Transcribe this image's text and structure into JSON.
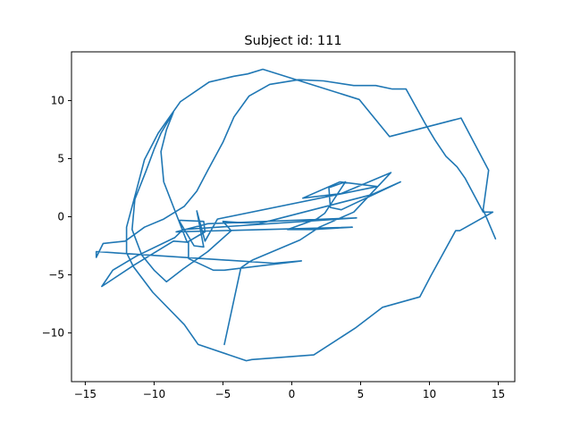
{
  "chart_data": {
    "type": "line",
    "title": "Subject id: 111",
    "xlabel": "",
    "ylabel": "",
    "xlim": [
      -16.0,
      16.2
    ],
    "ylim": [
      -14.2,
      14.2
    ],
    "xticks": [
      -15,
      -10,
      -5,
      0,
      5,
      10,
      15
    ],
    "yticks": [
      -10,
      -5,
      0,
      5,
      10
    ],
    "xtick_labels": [
      "−15",
      "−10",
      "−5",
      "0",
      "5",
      "10",
      "15"
    ],
    "ytick_labels": [
      "−10",
      "−5",
      "0",
      "5",
      "10"
    ],
    "grid": false,
    "series": [
      {
        "color": "#1f77b4",
        "x": [
          -4.9,
          -3.7,
          -3.1,
          -2.8,
          0.6,
          2.0,
          4.5,
          7.2,
          3.6,
          0.8,
          3.5,
          6.2,
          -5.4,
          -6.3,
          -6.9,
          -6.4,
          -7.1,
          -8.2,
          -6.4,
          -6.3,
          -6.6,
          -7.6,
          -9.3,
          -9.5,
          -9.1,
          -8.6,
          -9.5,
          -10.0,
          -10.6,
          -11.4,
          -11.6,
          -10.9,
          -10.0,
          -9.1,
          -7.9,
          -6.1,
          -4.4,
          -5.0,
          -2.4,
          5.8,
          7.9,
          3.6,
          2.8,
          2.7,
          3.9,
          2.4,
          1.8,
          -0.3,
          1.5,
          4.4,
          -8.4,
          -6.1,
          4.7,
          -7.9,
          -8.5,
          -11.3,
          -13.0,
          -13.8,
          -11.5,
          -8.6,
          -7.5,
          -7.5,
          -5.7,
          -4.9,
          0.7,
          -1.3,
          -14.2,
          -14.2,
          -13.7,
          -12.1,
          -10.7,
          -9.3,
          -7.8,
          -6.9,
          -6.1,
          -5.0,
          -4.2,
          -3.1,
          -1.6,
          0.5,
          2.3,
          4.5,
          6.1,
          7.3,
          8.3,
          9.7,
          10.4,
          11.2,
          12.0,
          12.6,
          13.9,
          14.6,
          12.2,
          11.9,
          10.1,
          9.3,
          6.6,
          4.6,
          1.6,
          -2.9,
          -3.3,
          -6.8,
          -7.8,
          -10.1,
          -11.5,
          -12.0,
          -12.0,
          -11.3,
          -10.7,
          -9.7,
          -8.1,
          -6.0,
          -4.2,
          -3.2,
          -2.1,
          4.9,
          7.1,
          12.3,
          14.3,
          13.9,
          14.8
        ],
        "y": [
          -11.0,
          -4.4,
          -3.9,
          -3.7,
          -2.0,
          -0.9,
          0.4,
          3.8,
          2.0,
          1.6,
          3.0,
          2.6,
          -0.2,
          -2.1,
          0.5,
          -2.6,
          -2.5,
          -0.3,
          -0.4,
          -1.3,
          -1.5,
          -2.2,
          3.0,
          5.6,
          7.5,
          9.0,
          7.2,
          5.8,
          3.9,
          1.5,
          -1.1,
          -3.3,
          -4.6,
          -5.6,
          -4.5,
          -3.0,
          -1.2,
          -0.4,
          -0.6,
          1.9,
          3.0,
          0.6,
          0.8,
          2.5,
          3.0,
          0.3,
          -0.2,
          -1.1,
          -1.1,
          -0.9,
          -1.3,
          -0.6,
          -0.1,
          -1.1,
          -1.8,
          -3.4,
          -4.6,
          -6.0,
          -4.2,
          -2.1,
          -2.2,
          -3.6,
          -4.6,
          -4.6,
          -3.8,
          -4.0,
          -3.0,
          -3.5,
          -2.3,
          -2.1,
          -0.9,
          -0.2,
          0.9,
          2.2,
          4.0,
          6.4,
          8.6,
          10.4,
          11.4,
          11.8,
          11.7,
          11.3,
          11.3,
          11.0,
          11.0,
          8.0,
          6.6,
          5.2,
          4.3,
          3.3,
          0.4,
          0.4,
          -1.2,
          -1.2,
          -5.1,
          -6.9,
          -7.8,
          -9.6,
          -11.9,
          -12.3,
          -12.4,
          -11.0,
          -9.3,
          -6.5,
          -4.3,
          -3.1,
          -0.9,
          2.2,
          4.9,
          7.2,
          9.9,
          11.6,
          12.1,
          12.3,
          12.7,
          10.1,
          6.9,
          8.5,
          4.0,
          0.6,
          -1.9
        ]
      }
    ]
  }
}
